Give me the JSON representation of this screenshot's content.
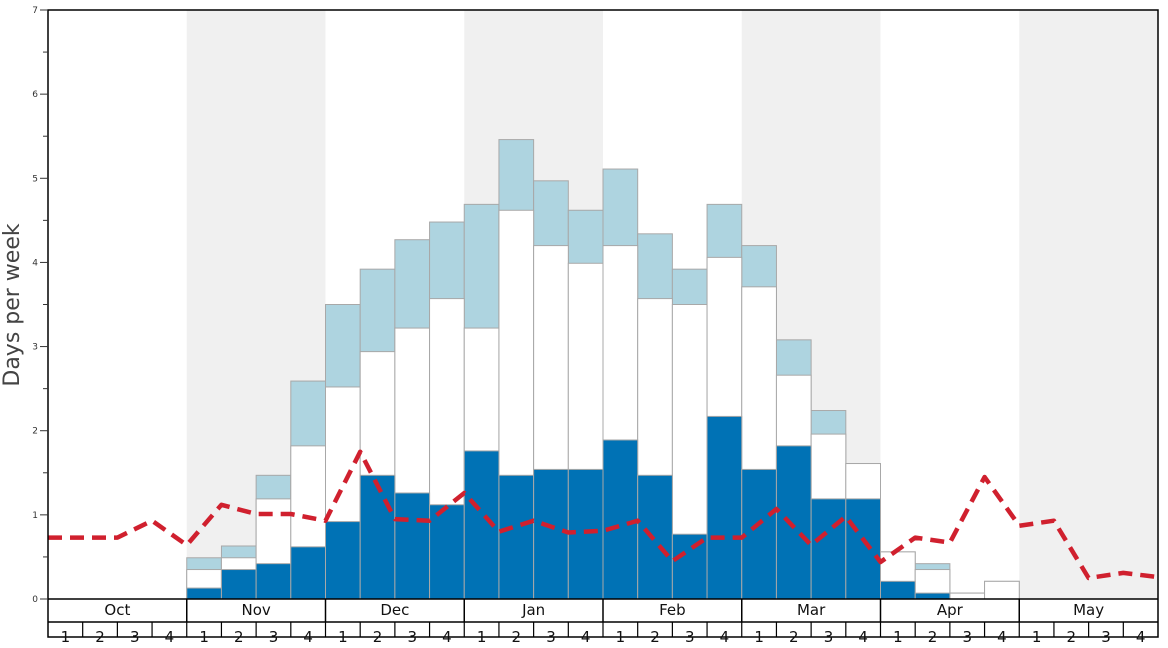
{
  "chart_data": {
    "type": "bar",
    "ylabel": "Days per week",
    "ylim": [
      0,
      7
    ],
    "yticks": [
      "0",
      "1",
      "2",
      "3",
      "4",
      "5",
      "6",
      "7"
    ],
    "months": [
      "Oct",
      "Nov",
      "Dec",
      "Jan",
      "Feb",
      "Mar",
      "Apr",
      "May"
    ],
    "week_labels": [
      "1",
      "2",
      "3",
      "4",
      "1",
      "2",
      "3",
      "4",
      "1",
      "2",
      "3",
      "4",
      "1",
      "2",
      "3",
      "4",
      "1",
      "2",
      "3",
      "4",
      "1",
      "2",
      "3",
      "4",
      "1",
      "2",
      "3",
      "4",
      "1",
      "2",
      "3",
      "4"
    ],
    "colors": {
      "dark": "#0072b5",
      "white": "#ffffff",
      "light": "#aed4e0",
      "line": "#d0202e",
      "band": "#f0f0f0"
    },
    "series": [
      {
        "name": "dark",
        "values": [
          0,
          0,
          0,
          0,
          0.13,
          0.35,
          0.42,
          0.62,
          0.92,
          1.47,
          1.26,
          1.12,
          1.76,
          1.47,
          1.54,
          1.54,
          1.89,
          1.47,
          0.77,
          2.17,
          1.54,
          1.82,
          1.19,
          1.19,
          0.21,
          0.07,
          0,
          0,
          0,
          0,
          0,
          0
        ]
      },
      {
        "name": "white",
        "values": [
          0,
          0,
          0,
          0,
          0.35,
          0.49,
          1.19,
          1.82,
          2.52,
          2.94,
          3.22,
          3.57,
          3.22,
          4.62,
          4.2,
          3.99,
          4.2,
          3.57,
          3.5,
          4.06,
          3.71,
          2.66,
          1.96,
          1.61,
          0.56,
          0.35,
          0.07,
          0.21,
          0,
          0,
          0,
          0
        ]
      },
      {
        "name": "light",
        "values": [
          0,
          0,
          0,
          0,
          0.49,
          0.63,
          1.47,
          2.59,
          3.5,
          3.92,
          4.27,
          4.48,
          4.69,
          5.46,
          4.97,
          4.62,
          5.11,
          4.34,
          3.92,
          4.69,
          4.2,
          3.08,
          2.24,
          1.61,
          0.56,
          0.42,
          0.07,
          0.21,
          0,
          0,
          0,
          0
        ]
      },
      {
        "name": "dashed-line",
        "values": [
          0.73,
          0.73,
          0.73,
          0.93,
          0.64,
          1.12,
          1.01,
          1.01,
          0.93,
          1.75,
          0.95,
          0.93,
          1.26,
          0.8,
          0.93,
          0.79,
          0.81,
          0.93,
          0.45,
          0.73,
          0.73,
          1.07,
          0.64,
          0.98,
          0.44,
          0.73,
          0.67,
          1.45,
          0.87,
          0.93,
          0.25,
          0.31,
          0.26
        ]
      }
    ]
  }
}
